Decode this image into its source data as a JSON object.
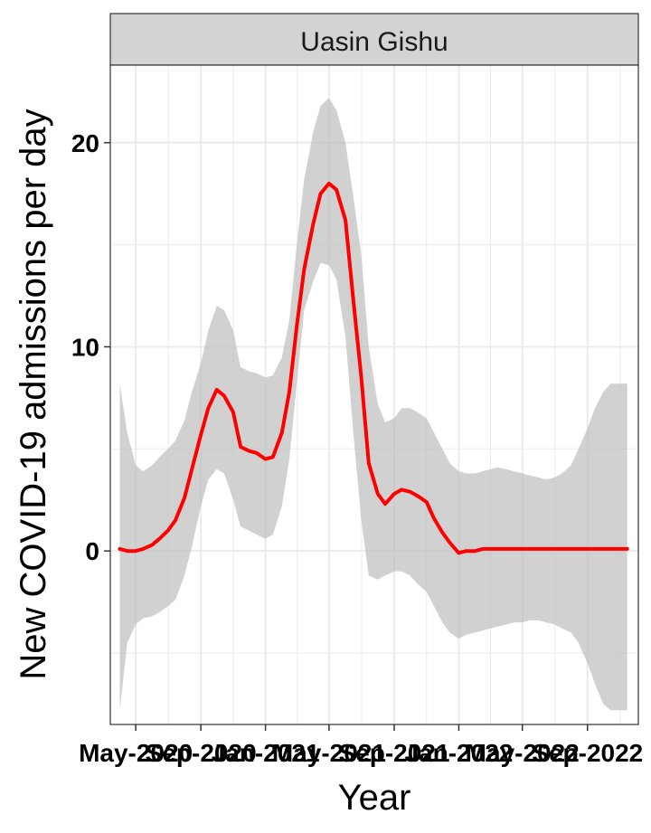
{
  "chart_data": {
    "type": "line",
    "panel_title": "Uasin Gishu",
    "xlabel": "Year",
    "ylabel": "New COVID-19 admissions per day",
    "y_ticks": [
      0,
      10,
      20
    ],
    "ylim": [
      -8.5,
      23.8
    ],
    "xlim": [
      "2020-03-14",
      "2022-12-06"
    ],
    "x_tick_dates": [
      "2020-05-01",
      "2020-09-01",
      "2021-01-01",
      "2021-05-01",
      "2021-09-01",
      "2022-01-01",
      "2022-05-01",
      "2022-09-01"
    ],
    "x_tick_labels": [
      "May-2020",
      "Sep-2020",
      "Jan-2021",
      "May-2021",
      "Sep-2021",
      "Jan-2022",
      "May-2022",
      "Sep-2022"
    ],
    "grid": true,
    "colors": {
      "line": "#ff0000",
      "ribbon": "#bebebe",
      "strip_fill": "#d3d3d3",
      "grid": "#ebebeb"
    },
    "series": [
      {
        "x": [
          "2020-04-01",
          "2020-04-15",
          "2020-05-01",
          "2020-05-15",
          "2020-06-01",
          "2020-06-15",
          "2020-07-01",
          "2020-07-15",
          "2020-08-01",
          "2020-08-15",
          "2020-09-01",
          "2020-09-15",
          "2020-10-01",
          "2020-10-15",
          "2020-11-01",
          "2020-11-15",
          "2020-12-01",
          "2020-12-15",
          "2021-01-01",
          "2021-01-15",
          "2021-02-01",
          "2021-02-15",
          "2021-03-01",
          "2021-03-15",
          "2021-04-01",
          "2021-04-15",
          "2021-05-01",
          "2021-05-15",
          "2021-06-01",
          "2021-06-15",
          "2021-07-01",
          "2021-07-15",
          "2021-08-01",
          "2021-08-15",
          "2021-09-01",
          "2021-09-15",
          "2021-10-01",
          "2021-10-15",
          "2021-11-01",
          "2021-11-15",
          "2021-12-01",
          "2021-12-15",
          "2022-01-01",
          "2022-01-15",
          "2022-02-01",
          "2022-02-15",
          "2022-03-01",
          "2022-03-15",
          "2022-04-01",
          "2022-04-15",
          "2022-05-01",
          "2022-05-15",
          "2022-06-01",
          "2022-06-15",
          "2022-07-01",
          "2022-07-15",
          "2022-08-01",
          "2022-08-15",
          "2022-09-01",
          "2022-09-15",
          "2022-10-01",
          "2022-10-15",
          "2022-11-01",
          "2022-11-15"
        ],
        "values": [
          0.1,
          0.0,
          0.0,
          0.1,
          0.3,
          0.6,
          1.0,
          1.5,
          2.6,
          4.0,
          5.7,
          7.0,
          7.9,
          7.6,
          6.8,
          5.1,
          4.9,
          4.8,
          4.5,
          4.6,
          5.8,
          7.8,
          11.0,
          13.8,
          16.0,
          17.5,
          18.0,
          17.7,
          16.2,
          12.5,
          8.5,
          4.3,
          2.8,
          2.3,
          2.8,
          3.0,
          2.9,
          2.7,
          2.4,
          1.6,
          0.9,
          0.4,
          -0.1,
          0.0,
          0.0,
          0.1,
          0.1,
          0.1,
          0.1,
          0.1,
          0.1,
          0.1,
          0.1,
          0.1,
          0.1,
          0.1,
          0.1,
          0.1,
          0.1,
          0.1,
          0.1,
          0.1,
          0.1,
          0.1
        ],
        "lower": [
          -7.8,
          -4.5,
          -3.6,
          -3.3,
          -3.2,
          -3.0,
          -2.7,
          -2.4,
          -1.2,
          0.2,
          2.2,
          3.5,
          4.0,
          3.8,
          2.5,
          1.2,
          1.0,
          0.8,
          0.6,
          0.8,
          2.2,
          4.5,
          8.2,
          11.8,
          13.2,
          14.1,
          14.0,
          13.3,
          10.5,
          6.0,
          1.5,
          -1.2,
          -1.4,
          -1.2,
          -1.0,
          -1.0,
          -1.2,
          -1.6,
          -2.0,
          -2.7,
          -3.5,
          -4.0,
          -4.3,
          -4.1,
          -4.0,
          -3.9,
          -3.8,
          -3.7,
          -3.6,
          -3.5,
          -3.5,
          -3.4,
          -3.4,
          -3.5,
          -3.6,
          -3.8,
          -4.0,
          -4.5,
          -5.5,
          -6.5,
          -7.5,
          -7.8,
          -7.8,
          -7.8
        ],
        "upper": [
          8.2,
          5.8,
          4.2,
          3.9,
          4.2,
          4.6,
          5.0,
          5.4,
          6.4,
          7.8,
          9.2,
          10.8,
          12.0,
          11.8,
          10.8,
          9.0,
          8.8,
          8.7,
          8.5,
          8.6,
          9.5,
          11.3,
          15.0,
          18.2,
          20.5,
          21.8,
          22.2,
          21.6,
          20.0,
          17.5,
          14.5,
          10.0,
          7.2,
          6.3,
          6.5,
          7.0,
          7.0,
          6.8,
          6.5,
          5.8,
          5.0,
          4.3,
          3.9,
          3.8,
          3.8,
          3.9,
          4.0,
          4.1,
          4.0,
          3.9,
          3.8,
          3.7,
          3.6,
          3.5,
          3.6,
          3.8,
          4.2,
          5.0,
          6.0,
          7.0,
          7.8,
          8.2,
          8.2,
          8.2
        ]
      }
    ]
  }
}
